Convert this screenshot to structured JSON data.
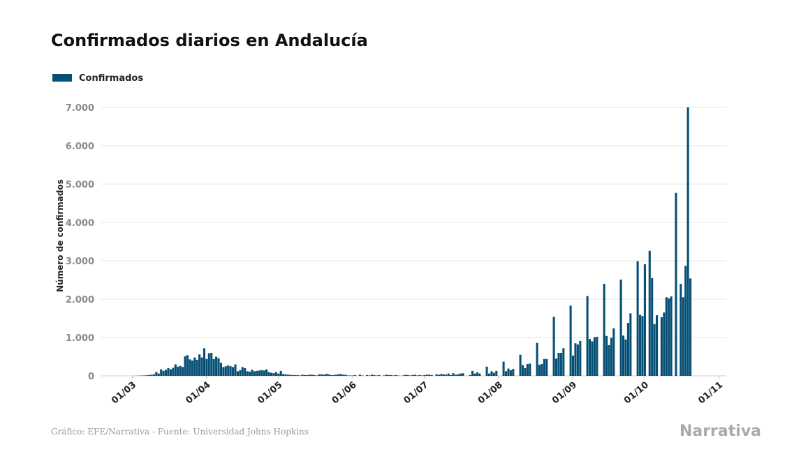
{
  "chart_data": {
    "type": "bar",
    "title": "Confirmados diarios en Andalucía",
    "y_label": "Número de confirmados",
    "source": "Gráfico: EFE/Narrativa - Fuente: Universidad Johns Hopkins",
    "brand": "Narrativa",
    "color": "#064f74",
    "grid": true,
    "legend": "top-left",
    "xlim": [
      "16/02",
      "04/11"
    ],
    "xticks": [
      "01/03",
      "01/04",
      "01/05",
      "01/06",
      "01/07",
      "01/08",
      "01/09",
      "01/10",
      "01/11"
    ],
    "ylim": [
      0,
      7000
    ],
    "yticks": [
      0,
      {
        "value": 1000,
        "label": "1.000"
      },
      {
        "value": 2000,
        "label": "2.000"
      },
      {
        "value": 3000,
        "label": "3.000"
      },
      {
        "value": 4000,
        "label": "4.000"
      },
      {
        "value": 5000,
        "label": "5.000"
      },
      {
        "value": 6000,
        "label": "6.000"
      },
      {
        "value": 7000,
        "label": "7.000"
      }
    ],
    "x": [
      "01/03",
      "02/03",
      "03/03",
      "04/03",
      "05/03",
      "06/03",
      "07/03",
      "08/03",
      "09/03",
      "10/03",
      "11/03",
      "12/03",
      "13/03",
      "14/03",
      "15/03",
      "16/03",
      "17/03",
      "18/03",
      "19/03",
      "20/03",
      "21/03",
      "22/03",
      "23/03",
      "24/03",
      "25/03",
      "26/03",
      "27/03",
      "28/03",
      "29/03",
      "30/03",
      "31/03",
      "01/04",
      "02/04",
      "03/04",
      "04/04",
      "05/04",
      "06/04",
      "07/04",
      "08/04",
      "09/04",
      "10/04",
      "11/04",
      "12/04",
      "13/04",
      "14/04",
      "15/04",
      "16/04",
      "17/04",
      "18/04",
      "19/04",
      "20/04",
      "21/04",
      "22/04",
      "23/04",
      "24/04",
      "25/04",
      "26/04",
      "27/04",
      "28/04",
      "29/04",
      "30/04",
      "01/05",
      "02/05",
      "03/05",
      "04/05",
      "05/05",
      "06/05",
      "07/05",
      "08/05",
      "09/05",
      "10/05",
      "11/05",
      "12/05",
      "13/05",
      "14/05",
      "15/05",
      "16/05",
      "17/05",
      "18/05",
      "19/05",
      "20/05",
      "21/05",
      "22/05",
      "23/05",
      "24/05",
      "25/05",
      "26/05",
      "27/05",
      "28/05",
      "29/05",
      "30/05",
      "31/05",
      "01/06",
      "02/06",
      "03/06",
      "04/06",
      "05/06",
      "06/06",
      "07/06",
      "08/06",
      "09/06",
      "10/06",
      "11/06",
      "12/06",
      "13/06",
      "14/06",
      "15/06",
      "16/06",
      "17/06",
      "18/06",
      "19/06",
      "20/06",
      "21/06",
      "22/06",
      "23/06",
      "24/06",
      "25/06",
      "26/06",
      "27/06",
      "28/06",
      "29/06",
      "30/06",
      "01/07",
      "02/07",
      "03/07",
      "04/07",
      "05/07",
      "06/07",
      "07/07",
      "08/07",
      "09/07",
      "10/07",
      "11/07",
      "12/07",
      "13/07",
      "14/07",
      "15/07",
      "16/07",
      "17/07",
      "18/07",
      "19/07",
      "20/07",
      "21/07",
      "22/07",
      "23/07",
      "24/07",
      "25/07",
      "26/07",
      "27/07",
      "28/07",
      "29/07",
      "30/07",
      "31/07",
      "01/08",
      "02/08",
      "03/08",
      "04/08",
      "05/08",
      "06/08",
      "07/08",
      "08/08",
      "09/08",
      "10/08",
      "11/08",
      "12/08",
      "13/08",
      "14/08",
      "15/08",
      "16/08",
      "17/08",
      "18/08",
      "19/08",
      "20/08",
      "21/08",
      "22/08",
      "23/08",
      "24/08",
      "25/08",
      "26/08",
      "27/08",
      "28/08",
      "29/08",
      "30/08",
      "31/08",
      "01/09",
      "02/09",
      "03/09",
      "04/09",
      "05/09",
      "06/09",
      "07/09",
      "08/09",
      "09/09",
      "10/09",
      "11/09",
      "12/09",
      "13/09",
      "14/09",
      "15/09",
      "16/09",
      "17/09",
      "18/09",
      "19/09",
      "20/09",
      "21/09",
      "22/09",
      "23/09",
      "24/09",
      "25/09",
      "26/09",
      "27/09",
      "28/09",
      "29/09",
      "30/09",
      "01/10",
      "02/10",
      "03/10",
      "04/10",
      "05/10",
      "06/10",
      "07/10",
      "08/10",
      "09/10",
      "10/10",
      "11/10",
      "12/10",
      "13/10",
      "14/10",
      "15/10",
      "16/10",
      "17/10",
      "18/10",
      "19/10",
      "20/10"
    ],
    "series": [
      {
        "name": "Confirmados",
        "color": "#064f74",
        "values": [
          0,
          2,
          3,
          5,
          8,
          10,
          15,
          20,
          30,
          40,
          100,
          60,
          170,
          130,
          160,
          200,
          170,
          210,
          300,
          240,
          260,
          230,
          510,
          540,
          430,
          400,
          480,
          420,
          560,
          480,
          720,
          440,
          590,
          600,
          440,
          500,
          460,
          340,
          230,
          250,
          270,
          250,
          230,
          300,
          120,
          150,
          230,
          200,
          120,
          110,
          160,
          120,
          130,
          140,
          150,
          140,
          170,
          100,
          80,
          70,
          100,
          60,
          130,
          50,
          40,
          30,
          30,
          20,
          20,
          20,
          10,
          30,
          20,
          20,
          30,
          30,
          20,
          10,
          40,
          40,
          30,
          50,
          40,
          20,
          20,
          30,
          40,
          50,
          30,
          30,
          10,
          10,
          10,
          20,
          0,
          30,
          10,
          0,
          20,
          10,
          30,
          20,
          10,
          20,
          0,
          10,
          30,
          20,
          20,
          10,
          20,
          10,
          0,
          10,
          30,
          20,
          10,
          20,
          30,
          10,
          20,
          10,
          20,
          30,
          30,
          20,
          0,
          40,
          30,
          50,
          40,
          30,
          60,
          20,
          70,
          30,
          40,
          60,
          70,
          0,
          0,
          20,
          130,
          60,
          90,
          60,
          0,
          0,
          240,
          60,
          120,
          80,
          130,
          0,
          0,
          370,
          120,
          190,
          150,
          180,
          0,
          0,
          550,
          280,
          200,
          310,
          320,
          0,
          0,
          860,
          290,
          310,
          440,
          440,
          0,
          0,
          1540,
          450,
          600,
          600,
          720,
          0,
          0,
          1830,
          530,
          850,
          820,
          910,
          0,
          0,
          2080,
          960,
          900,
          1010,
          1020,
          0,
          0,
          2400,
          1040,
          800,
          990,
          1240,
          0,
          0,
          2510,
          1050,
          950,
          1380,
          1630,
          0,
          0,
          2990,
          1590,
          1560,
          2910,
          0,
          3260,
          2550,
          1350,
          1580,
          0,
          1530,
          1650,
          2050,
          2020,
          2070,
          0,
          4770,
          0,
          2400,
          2050,
          2870,
          7000,
          2540
        ]
      }
    ]
  }
}
